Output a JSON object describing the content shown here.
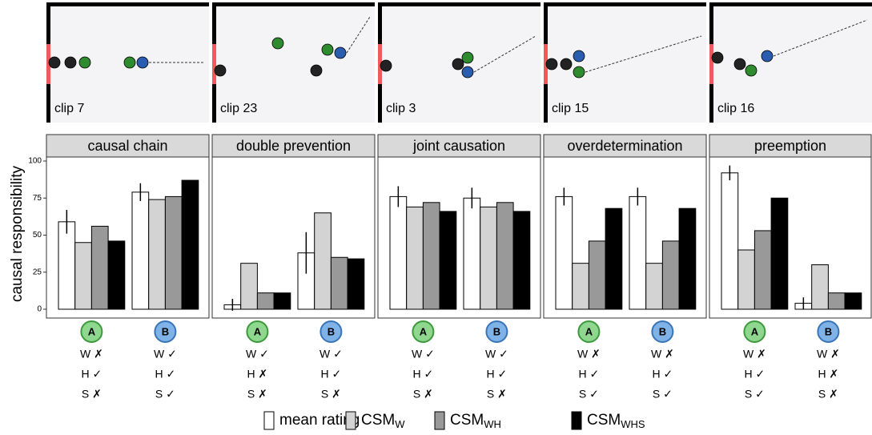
{
  "clips": [
    "clip 7",
    "clip 23",
    "clip 3",
    "clip 15",
    "clip 16"
  ],
  "y_axis_label": "causal responsibility",
  "legend": [
    {
      "label": "mean rating",
      "color": "#ffffff"
    },
    {
      "label": "CSM",
      "sub": "W",
      "color": "#d3d3d3"
    },
    {
      "label": "CSM",
      "sub": "WH",
      "color": "#999999"
    },
    {
      "label": "CSM",
      "sub": "WHS",
      "color": "#000000"
    }
  ],
  "chart_data": [
    {
      "type": "bar",
      "title": "causal chain",
      "categories": [
        "A",
        "B"
      ],
      "series": [
        {
          "values": [
            59,
            79
          ],
          "errors": [
            8,
            6
          ]
        },
        {
          "values": [
            45,
            74
          ]
        },
        {
          "values": [
            56,
            76
          ]
        },
        {
          "values": [
            46,
            87
          ]
        }
      ],
      "checks": [
        [
          "W ✗",
          "H ✓",
          "S ✗"
        ],
        [
          "W ✓",
          "H ✓",
          "S ✓"
        ]
      ],
      "ylim": [
        0,
        100
      ],
      "yticks": [
        0,
        25,
        50,
        75,
        100
      ]
    },
    {
      "type": "bar",
      "title": "double prevention",
      "categories": [
        "A",
        "B"
      ],
      "series": [
        {
          "values": [
            3,
            38
          ],
          "errors": [
            4,
            14
          ]
        },
        {
          "values": [
            31,
            65
          ]
        },
        {
          "values": [
            11,
            35
          ]
        },
        {
          "values": [
            11,
            34
          ]
        }
      ],
      "checks": [
        [
          "W ✓",
          "H ✗",
          "S ✗"
        ],
        [
          "W ✓",
          "H ✓",
          "S ✗"
        ]
      ],
      "ylim": [
        0,
        100
      ],
      "yticks": [
        0,
        25,
        50,
        75,
        100
      ]
    },
    {
      "type": "bar",
      "title": "joint causation",
      "categories": [
        "A",
        "B"
      ],
      "series": [
        {
          "values": [
            76,
            75
          ],
          "errors": [
            7,
            7
          ]
        },
        {
          "values": [
            69,
            69
          ]
        },
        {
          "values": [
            72,
            72
          ]
        },
        {
          "values": [
            66,
            66
          ]
        }
      ],
      "checks": [
        [
          "W ✓",
          "H ✓",
          "S ✗"
        ],
        [
          "W ✓",
          "H ✓",
          "S ✗"
        ]
      ],
      "ylim": [
        0,
        100
      ],
      "yticks": [
        0,
        25,
        50,
        75,
        100
      ]
    },
    {
      "type": "bar",
      "title": "overdetermination",
      "categories": [
        "A",
        "B"
      ],
      "series": [
        {
          "values": [
            76,
            76
          ],
          "errors": [
            6,
            6
          ]
        },
        {
          "values": [
            31,
            31
          ]
        },
        {
          "values": [
            46,
            46
          ]
        },
        {
          "values": [
            68,
            68
          ]
        }
      ],
      "checks": [
        [
          "W ✗",
          "H ✓",
          "S ✓"
        ],
        [
          "W ✗",
          "H ✓",
          "S ✓"
        ]
      ],
      "ylim": [
        0,
        100
      ],
      "yticks": [
        0,
        25,
        50,
        75,
        100
      ]
    },
    {
      "type": "bar",
      "title": "preemption",
      "categories": [
        "A",
        "B"
      ],
      "series": [
        {
          "values": [
            92,
            4
          ],
          "errors": [
            5,
            4
          ]
        },
        {
          "values": [
            40,
            30
          ]
        },
        {
          "values": [
            53,
            11
          ]
        },
        {
          "values": [
            75,
            11
          ]
        }
      ],
      "checks": [
        [
          "W ✗",
          "H ✓",
          "S ✓"
        ],
        [
          "W ✗",
          "H ✗",
          "S ✗"
        ]
      ],
      "ylim": [
        0,
        100
      ],
      "yticks": [
        0,
        25,
        50,
        75,
        100
      ]
    }
  ]
}
